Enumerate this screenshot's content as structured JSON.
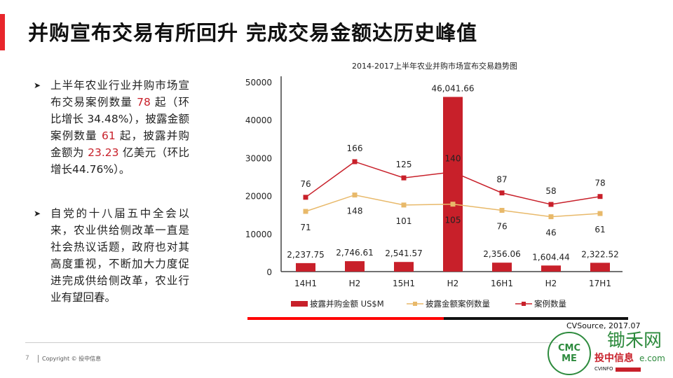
{
  "title": "并购宣布交易有所回升 完成交易金额达历史峰值",
  "bullets": [
    {
      "parts": [
        "上半年农业行业并购市场宣布交易案例数量 ",
        "78",
        " 起（环比增长 34.48%），披露金额案例数量 ",
        "61",
        " 起，披露并购金额为 ",
        "23.23",
        " 亿美元（环比增长44.76%）。"
      ]
    },
    {
      "text": "自党的十八届五中全会以来，农业供给侧改革一直是社会热议话题，政府也对其高度重视，不断加大力度促进完成供给侧改革，农业行业有望回春。"
    }
  ],
  "bullet_icon": "arrow-right-icon",
  "chart_data": {
    "type": "bar",
    "title": "2014-2017上半年农业并购市场宣布交易趋势图",
    "categories": [
      "14H1",
      "H2",
      "15H1",
      "H2",
      "16H1",
      "H2",
      "17H1"
    ],
    "ylim": [
      0,
      50000
    ],
    "yticks": [
      "50000",
      "40000",
      "30000",
      "20000",
      "10000",
      "0"
    ],
    "series": [
      {
        "name": "披露并购金额 US$M",
        "type": "bar",
        "values": [
          2237.75,
          2746.61,
          2541.57,
          46041.66,
          2356.06,
          1604.44,
          2322.52
        ],
        "labels": [
          "2,237.75",
          "2,746.61",
          "2,541.57",
          "46,041.66",
          "2,356.06",
          "1,604.44",
          "2,322.52"
        ],
        "color": "#c8202a"
      },
      {
        "name": "披露金额案例数量",
        "type": "line",
        "values": [
          71,
          148,
          101,
          105,
          76,
          46,
          61
        ],
        "color": "#e8b96a"
      },
      {
        "name": "案例数量",
        "type": "line",
        "values": [
          76,
          166,
          125,
          140,
          87,
          58,
          78
        ],
        "color": "#c8202a"
      }
    ],
    "legend": "bottom",
    "grid": false
  },
  "source": "CVSource, 2017.07",
  "footer": {
    "page": "7",
    "copyright": "Copyright © 投中信息"
  },
  "logos": {
    "seal": "CHINA MEDIA CAPITAL",
    "site": "锄禾网",
    "url": "e.com",
    "brand": "投中信息",
    "brand_en": "CVINFO"
  }
}
